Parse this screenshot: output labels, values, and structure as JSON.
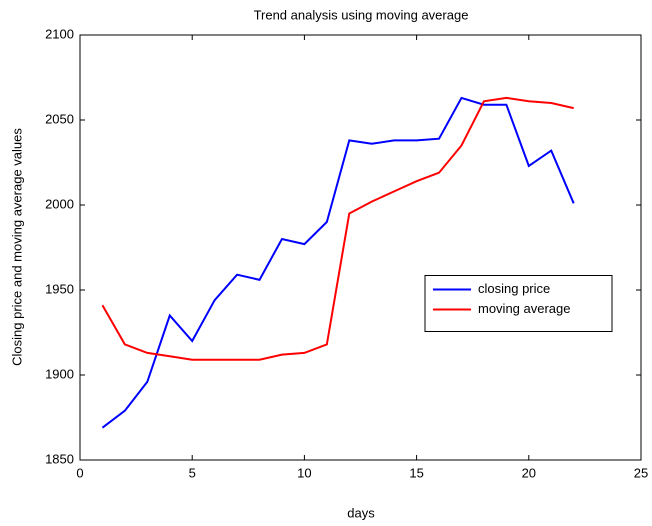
{
  "chart_data": {
    "type": "line",
    "title": "Trend analysis using moving average",
    "x_label": "days",
    "y_label": "Closing price and moving average values",
    "x": [
      1,
      2,
      3,
      4,
      5,
      6,
      7,
      8,
      9,
      10,
      11,
      12,
      13,
      14,
      15,
      16,
      17,
      18,
      19,
      20,
      21,
      22
    ],
    "series": [
      {
        "name": "closing price",
        "color": "#0000ff",
        "values": [
          1869,
          1879,
          1896,
          1935,
          1920,
          1944,
          1959,
          1956,
          1980,
          1977,
          1990,
          2038,
          2036,
          2038,
          2038,
          2039,
          2063,
          2059,
          2059,
          2023,
          2032,
          2001
        ]
      },
      {
        "name": "moving average",
        "color": "#ff0000",
        "values": [
          1941,
          1918,
          1913,
          1911,
          1909,
          1909,
          1909,
          1909,
          1912,
          1913,
          1918,
          1995,
          2002,
          2008,
          2014,
          2019,
          2035,
          2061,
          2063,
          2061,
          2060,
          2057
        ]
      }
    ],
    "xlim": [
      0,
      25
    ],
    "xticks": [
      0,
      5,
      10,
      15,
      20,
      25
    ],
    "ylim": [
      1850,
      2100
    ],
    "yticks": [
      1850,
      1900,
      1950,
      2000,
      2050,
      2100
    ],
    "grid": false,
    "legend_loc": "east"
  }
}
